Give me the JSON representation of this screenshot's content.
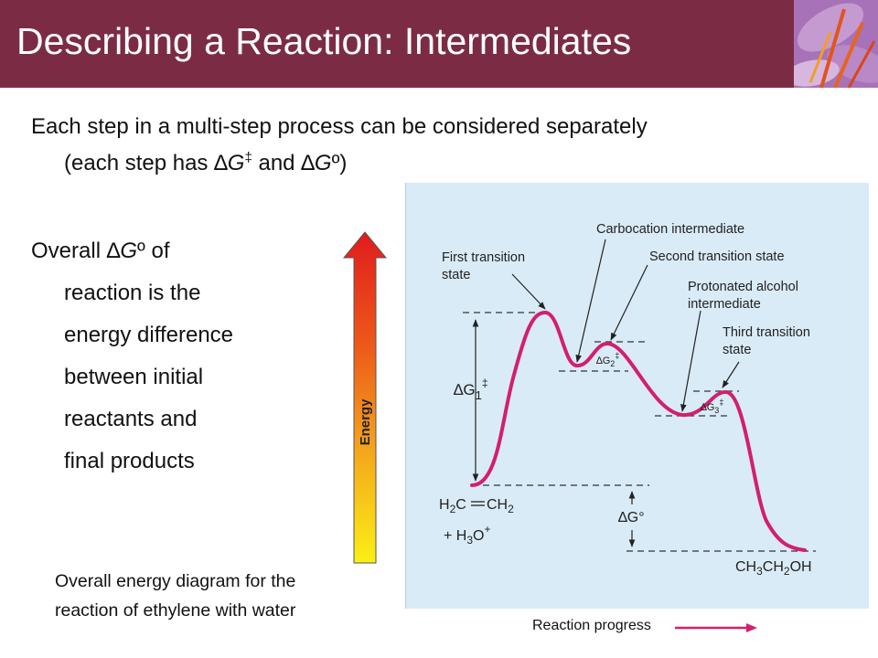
{
  "title": "Describing a Reaction: Intermediates",
  "bullet1": {
    "line1": "Each step in a multi-step process can be considered separately",
    "line2_prefix": "(each step has ",
    "delta1": "∆",
    "g1": "G",
    "dagger": "‡",
    "and": " and ",
    "delta2": "∆",
    "g2": "G",
    "deg": "º",
    "close": ")"
  },
  "bullet2": {
    "line1_prefix": "Overall ",
    "delta": "∆",
    "g": "G",
    "deg": "º",
    "line1_suffix": " of",
    "lines": [
      "reaction is the",
      "energy difference",
      "between initial",
      "reactants and",
      "final products"
    ]
  },
  "caption": {
    "line1": "Overall energy diagram for the",
    "line2": "reaction of ethylene with water"
  },
  "diagram": {
    "energy_label": "Energy",
    "labels": {
      "first_ts_1": "First transition",
      "first_ts_2": "state",
      "carbocation": "Carbocation intermediate",
      "second_ts": "Second transition state",
      "protonated_1": "Protonated alcohol",
      "protonated_2": "intermediate",
      "third_ts_1": "Third transition",
      "third_ts_2": "state",
      "dg1_sym": "∆G",
      "dg1_sub": "1",
      "dg1_sup": "‡",
      "dg2_sym": "∆G",
      "dg2_sub": "2",
      "dg2_sup": "‡",
      "dg3_sym": "∆G",
      "dg3_sub": "3",
      "dg3_sup": "‡",
      "dgo": "∆G°",
      "reactant_a": "H",
      "reactant_a_sub": "2",
      "reactant_b": "C",
      "reactant_c": "CH",
      "reactant_c_sub": "2",
      "reactant2_prefix": "+ H",
      "reactant2_sub": "3",
      "reactant2_o": "O",
      "reactant2_sup": "+",
      "product": "CH",
      "product_sub1": "3",
      "product_mid": "CH",
      "product_sub2": "2",
      "product_end": "OH"
    },
    "x_axis_label": "Reaction progress",
    "colors": {
      "curve": "#d21f6e",
      "panel": "#d9ebf6",
      "header": "#7b2c44"
    }
  }
}
